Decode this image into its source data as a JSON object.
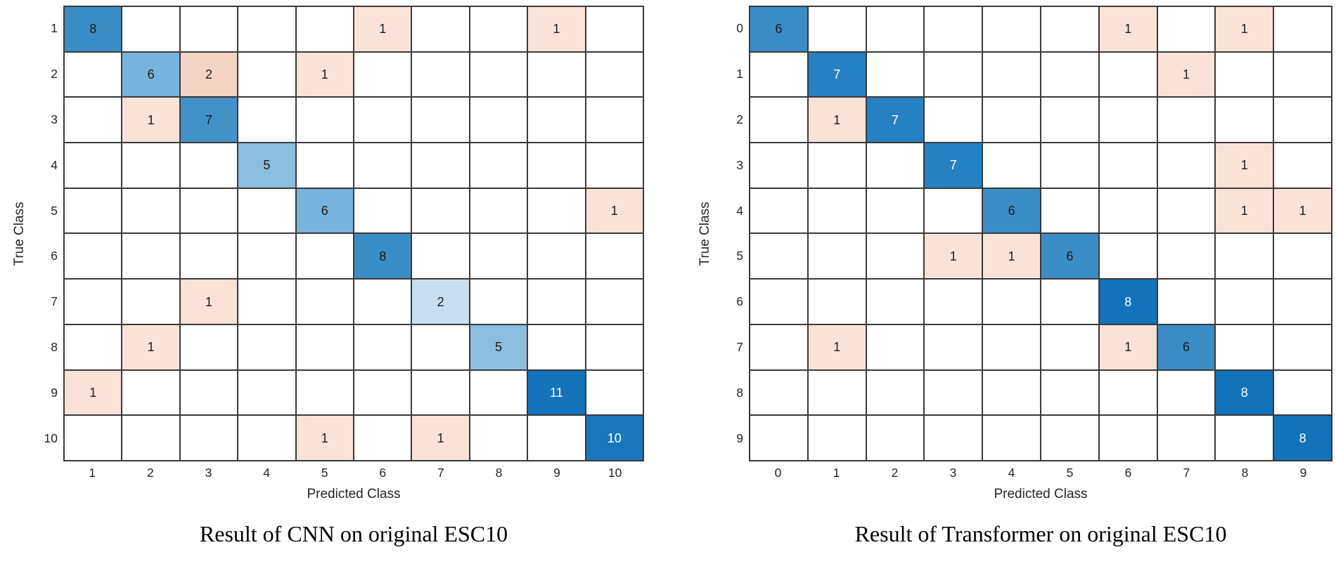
{
  "figure": {
    "description": "Two confusion matrix heatmaps shown side by side"
  },
  "chart_data": [
    {
      "type": "heatmap",
      "variant": "confusion-matrix",
      "title": "Result of CNN on original ESC10",
      "xlabel": "Predicted Class",
      "ylabel": "True Class",
      "x_tick_labels": [
        "1",
        "2",
        "3",
        "4",
        "5",
        "6",
        "7",
        "8",
        "9",
        "10"
      ],
      "y_tick_labels": [
        "1",
        "2",
        "3",
        "4",
        "5",
        "6",
        "7",
        "8",
        "9",
        "10"
      ],
      "matrix": [
        [
          8,
          0,
          0,
          0,
          0,
          1,
          0,
          0,
          1,
          0
        ],
        [
          0,
          6,
          2,
          0,
          1,
          0,
          0,
          0,
          0,
          0
        ],
        [
          0,
          1,
          7,
          0,
          0,
          0,
          0,
          0,
          0,
          0
        ],
        [
          0,
          0,
          0,
          5,
          0,
          0,
          0,
          0,
          0,
          0
        ],
        [
          0,
          0,
          0,
          0,
          6,
          0,
          0,
          0,
          0,
          1
        ],
        [
          0,
          0,
          0,
          0,
          0,
          8,
          0,
          0,
          0,
          0
        ],
        [
          0,
          0,
          1,
          0,
          0,
          0,
          2,
          0,
          0,
          0
        ],
        [
          0,
          1,
          0,
          0,
          0,
          0,
          0,
          5,
          0,
          0
        ],
        [
          1,
          0,
          0,
          0,
          0,
          0,
          0,
          0,
          11,
          0
        ],
        [
          0,
          0,
          0,
          0,
          1,
          0,
          1,
          0,
          0,
          10
        ]
      ],
      "style": {
        "grid_line_color": "#3a3a3a",
        "empty_cell_color": "#ffffff",
        "text_color_dark": "#1a1a1a",
        "text_color_light": "#ffffff",
        "diagonal_colors": {
          "2": "#c9dfef",
          "5": "#8abdde",
          "6": "#77b3dc",
          "7": "#4292c8",
          "8": "#3b8dc6",
          "10": "#1b77bc",
          "11": "#1473bb"
        },
        "offdiagonal_colors": {
          "1": "#f9e3d9",
          "2": "#f2d3c4"
        },
        "white_text_values": [
          10,
          11
        ]
      }
    },
    {
      "type": "heatmap",
      "variant": "confusion-matrix",
      "title": "Result of Transformer on original ESC10",
      "xlabel": "Predicted Class",
      "ylabel": "True Class",
      "x_tick_labels": [
        "0",
        "1",
        "2",
        "3",
        "4",
        "5",
        "6",
        "7",
        "8",
        "9"
      ],
      "y_tick_labels": [
        "0",
        "1",
        "2",
        "3",
        "4",
        "5",
        "6",
        "7",
        "8",
        "9"
      ],
      "matrix": [
        [
          6,
          0,
          0,
          0,
          0,
          0,
          1,
          0,
          1,
          0
        ],
        [
          0,
          7,
          0,
          0,
          0,
          0,
          0,
          1,
          0,
          0
        ],
        [
          0,
          1,
          7,
          0,
          0,
          0,
          0,
          0,
          0,
          0
        ],
        [
          0,
          0,
          0,
          7,
          0,
          0,
          0,
          0,
          1,
          0
        ],
        [
          0,
          0,
          0,
          0,
          6,
          0,
          0,
          0,
          1,
          1
        ],
        [
          0,
          0,
          0,
          1,
          1,
          6,
          0,
          0,
          0,
          0
        ],
        [
          0,
          0,
          0,
          0,
          0,
          0,
          8,
          0,
          0,
          0
        ],
        [
          0,
          1,
          0,
          0,
          0,
          0,
          1,
          6,
          0,
          0
        ],
        [
          0,
          0,
          0,
          0,
          0,
          0,
          0,
          0,
          8,
          0
        ],
        [
          0,
          0,
          0,
          0,
          0,
          0,
          0,
          0,
          0,
          8
        ]
      ],
      "style": {
        "grid_line_color": "#3a3a3a",
        "empty_cell_color": "#ffffff",
        "text_color_dark": "#1a1a1a",
        "text_color_light": "#ffffff",
        "diagonal_colors": {
          "6": "#3b8dc6",
          "7": "#2581c1",
          "8": "#1272ba"
        },
        "offdiagonal_colors": {
          "1": "#f9e3d9"
        },
        "white_text_values": [
          7,
          8
        ]
      }
    }
  ]
}
